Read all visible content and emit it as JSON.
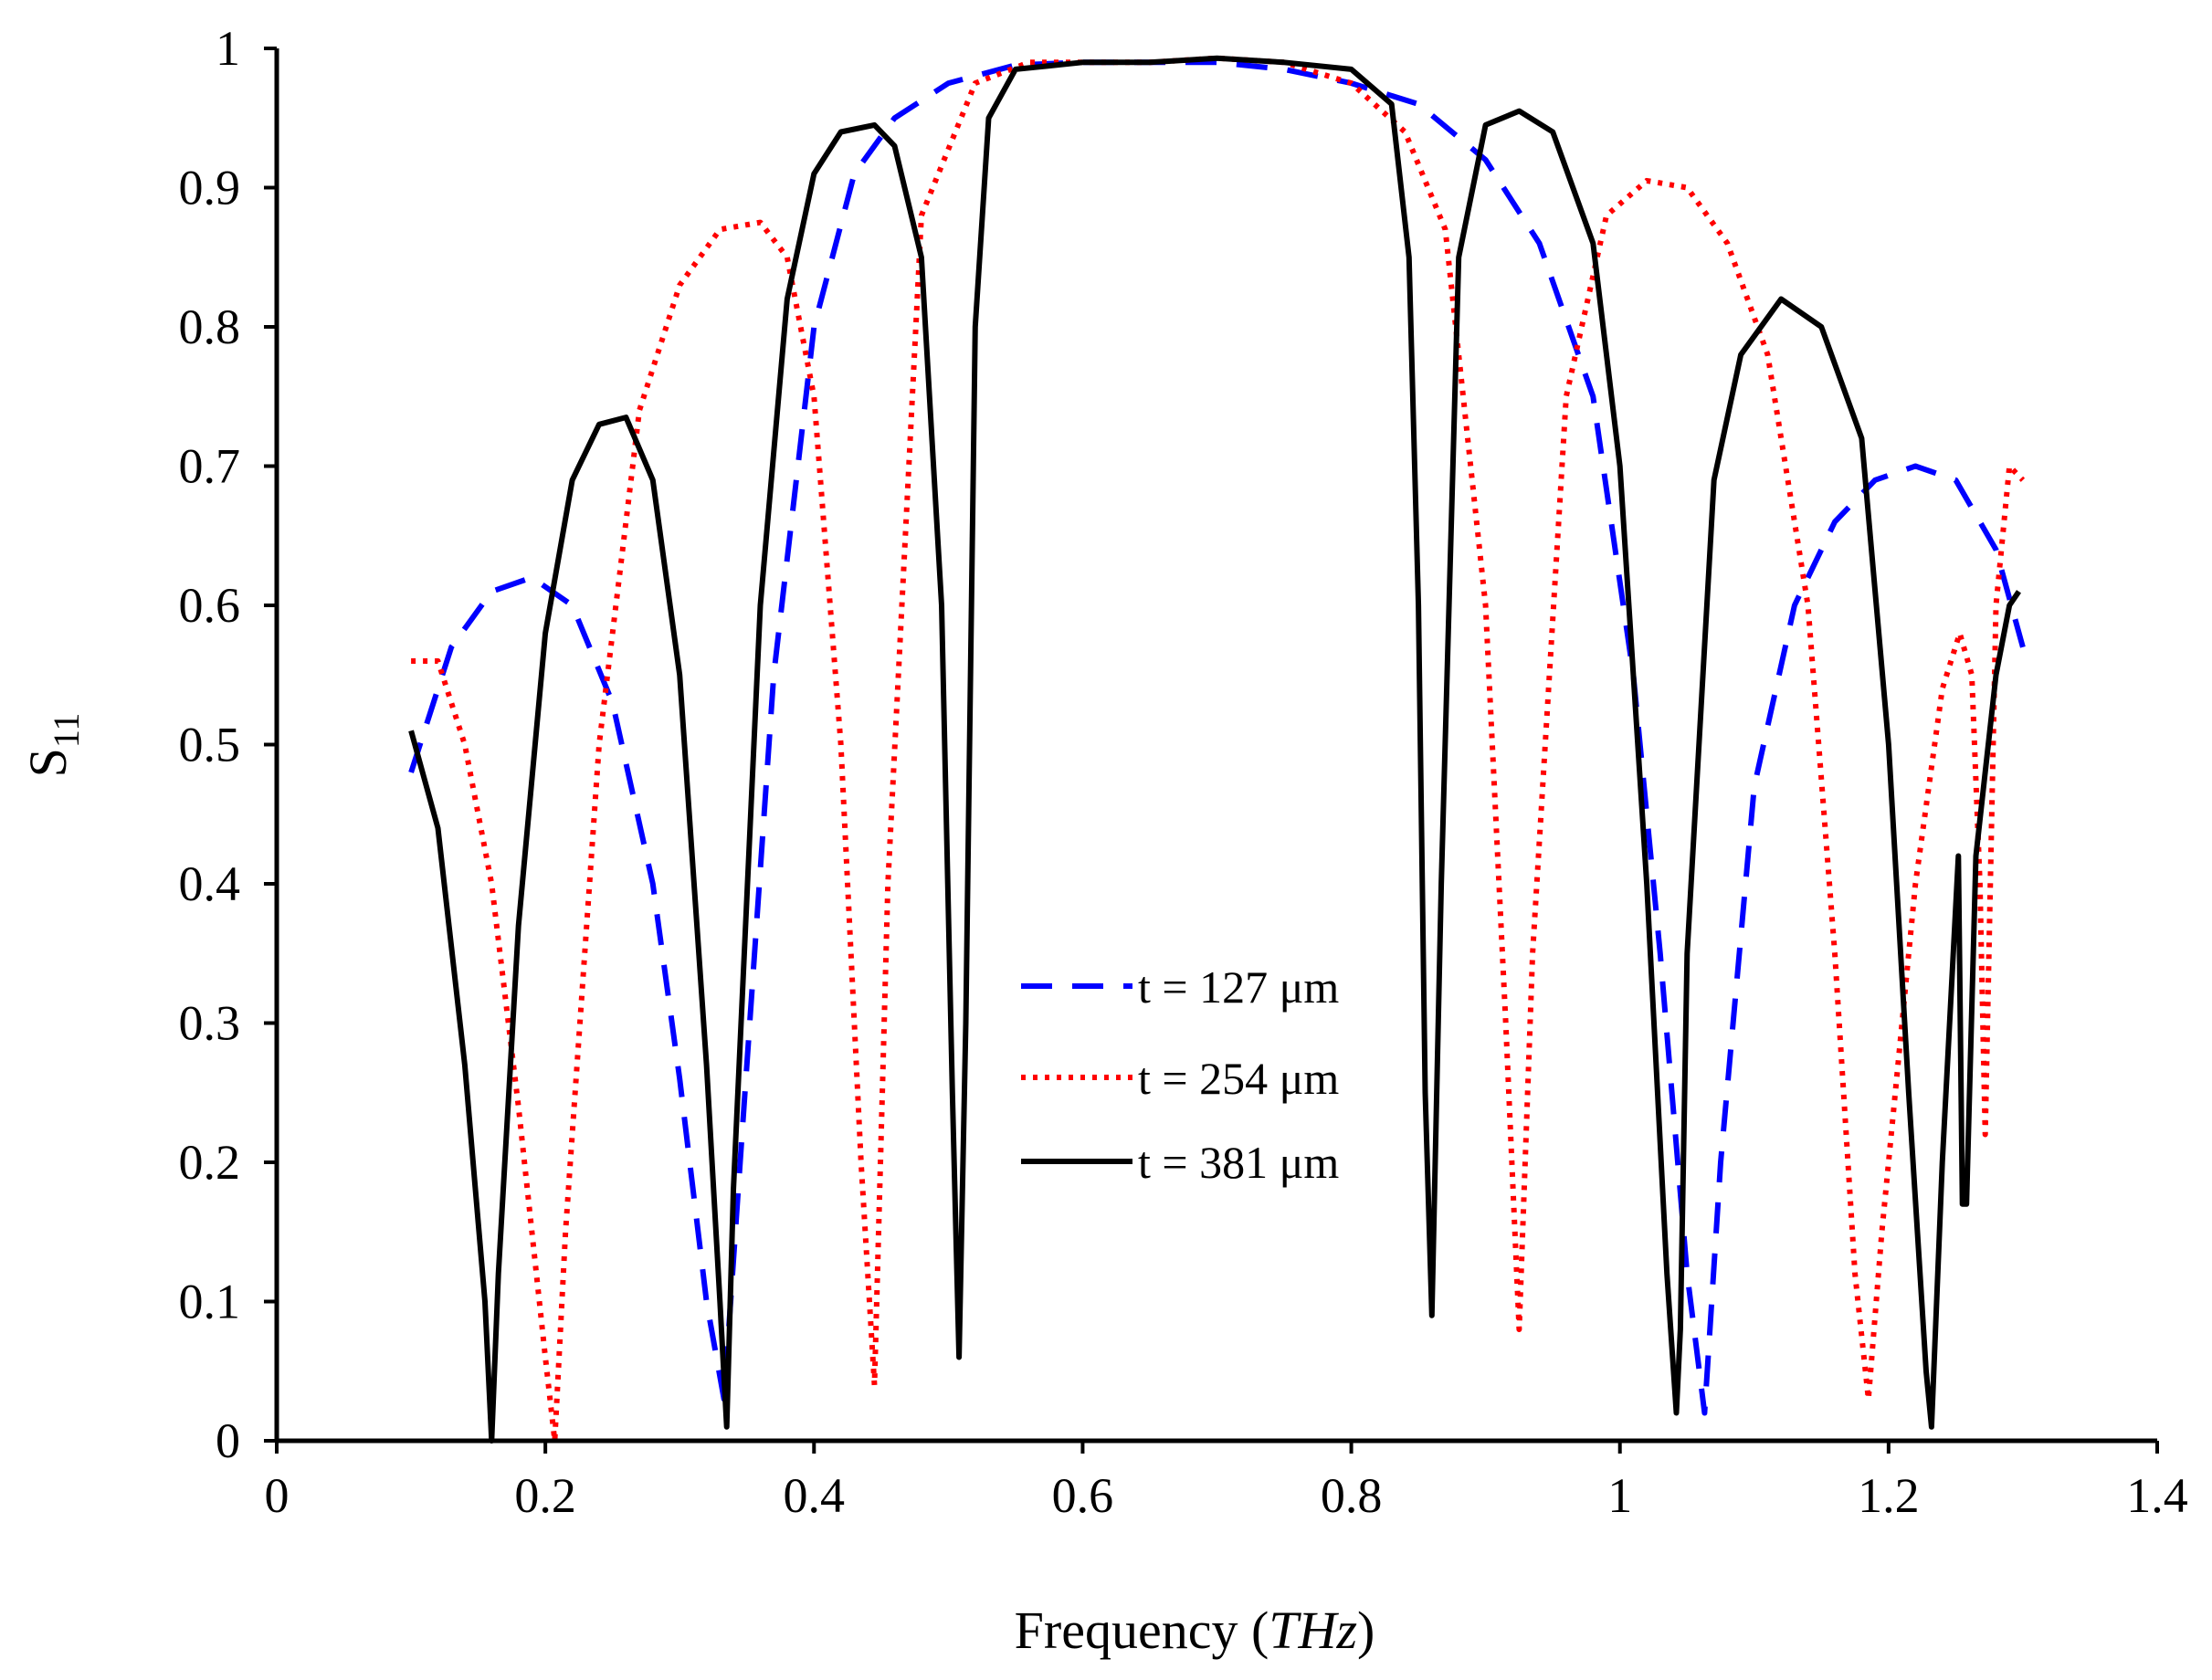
{
  "chart_data": {
    "type": "line",
    "title": "",
    "xlabel": "Frequency",
    "xlabel_unit": "THz",
    "ylabel_main": "S",
    "ylabel_sub": "11",
    "xlim": [
      0,
      1.4
    ],
    "ylim": [
      0,
      1
    ],
    "xticks": [
      "0",
      "0.2",
      "0.4",
      "0.6",
      "0.8",
      "1",
      "1.2",
      "1.4"
    ],
    "yticks": [
      "0",
      "0.1",
      "0.2",
      "0.3",
      "0.4",
      "0.5",
      "0.6",
      "0.7",
      "0.8",
      "0.9",
      "1"
    ],
    "grid": false,
    "legend_position": "center",
    "series": [
      {
        "name": "t = 127 μm",
        "color": "#0000ff",
        "style": "dashed",
        "x": [
          0.1,
          0.13,
          0.16,
          0.19,
          0.22,
          0.25,
          0.28,
          0.3,
          0.32,
          0.333,
          0.345,
          0.37,
          0.4,
          0.43,
          0.46,
          0.5,
          0.55,
          0.6,
          0.65,
          0.7,
          0.75,
          0.8,
          0.85,
          0.9,
          0.94,
          0.98,
          1.01,
          1.03,
          1.05,
          1.063,
          1.075,
          1.1,
          1.13,
          1.16,
          1.19,
          1.22,
          1.25,
          1.28,
          1.3
        ],
        "y": [
          0.48,
          0.57,
          0.61,
          0.62,
          0.6,
          0.53,
          0.4,
          0.26,
          0.1,
          0.03,
          0.2,
          0.55,
          0.8,
          0.91,
          0.95,
          0.975,
          0.988,
          0.99,
          0.99,
          0.99,
          0.985,
          0.975,
          0.96,
          0.92,
          0.86,
          0.75,
          0.55,
          0.35,
          0.12,
          0.02,
          0.2,
          0.47,
          0.6,
          0.66,
          0.69,
          0.7,
          0.69,
          0.64,
          0.57
        ]
      },
      {
        "name": "t = 254 μm",
        "color": "#ff0000",
        "style": "dotted",
        "x": [
          0.1,
          0.12,
          0.14,
          0.16,
          0.18,
          0.2,
          0.207,
          0.215,
          0.24,
          0.27,
          0.3,
          0.33,
          0.36,
          0.38,
          0.4,
          0.42,
          0.435,
          0.445,
          0.455,
          0.48,
          0.52,
          0.56,
          0.6,
          0.65,
          0.7,
          0.75,
          0.8,
          0.84,
          0.87,
          0.9,
          0.915,
          0.925,
          0.935,
          0.96,
          0.99,
          1.02,
          1.05,
          1.08,
          1.11,
          1.14,
          1.16,
          1.175,
          1.185,
          1.195,
          1.22,
          1.24,
          1.253,
          1.262,
          1.268,
          1.272,
          1.28,
          1.29,
          1.3
        ],
        "y": [
          0.56,
          0.56,
          0.5,
          0.4,
          0.24,
          0.06,
          0.0,
          0.15,
          0.5,
          0.74,
          0.83,
          0.87,
          0.875,
          0.85,
          0.75,
          0.5,
          0.2,
          0.04,
          0.4,
          0.88,
          0.975,
          0.99,
          0.99,
          0.99,
          0.993,
          0.99,
          0.975,
          0.94,
          0.87,
          0.6,
          0.3,
          0.08,
          0.35,
          0.75,
          0.88,
          0.905,
          0.9,
          0.86,
          0.78,
          0.6,
          0.35,
          0.12,
          0.03,
          0.15,
          0.4,
          0.54,
          0.58,
          0.55,
          0.4,
          0.22,
          0.6,
          0.7,
          0.69
        ]
      },
      {
        "name": "t = 381 μm",
        "color": "#000000",
        "style": "solid",
        "x": [
          0.1,
          0.12,
          0.14,
          0.155,
          0.16,
          0.165,
          0.18,
          0.2,
          0.22,
          0.24,
          0.26,
          0.28,
          0.3,
          0.32,
          0.33,
          0.335,
          0.34,
          0.36,
          0.38,
          0.4,
          0.42,
          0.445,
          0.46,
          0.48,
          0.495,
          0.503,
          0.508,
          0.513,
          0.52,
          0.53,
          0.55,
          0.6,
          0.65,
          0.7,
          0.75,
          0.8,
          0.83,
          0.843,
          0.85,
          0.855,
          0.86,
          0.867,
          0.88,
          0.9,
          0.925,
          0.95,
          0.98,
          1.0,
          1.02,
          1.035,
          1.042,
          1.045,
          1.05,
          1.07,
          1.09,
          1.12,
          1.15,
          1.18,
          1.2,
          1.215,
          1.228,
          1.232,
          1.24,
          1.252,
          1.255,
          1.258,
          1.265,
          1.28,
          1.29,
          1.297
        ],
        "y": [
          0.51,
          0.44,
          0.27,
          0.1,
          0.0,
          0.12,
          0.37,
          0.58,
          0.69,
          0.73,
          0.735,
          0.69,
          0.55,
          0.27,
          0.1,
          0.01,
          0.18,
          0.6,
          0.82,
          0.91,
          0.94,
          0.945,
          0.93,
          0.85,
          0.6,
          0.25,
          0.06,
          0.3,
          0.8,
          0.95,
          0.985,
          0.99,
          0.99,
          0.993,
          0.99,
          0.985,
          0.96,
          0.85,
          0.6,
          0.25,
          0.09,
          0.4,
          0.85,
          0.945,
          0.955,
          0.94,
          0.86,
          0.7,
          0.4,
          0.12,
          0.02,
          0.08,
          0.35,
          0.69,
          0.78,
          0.82,
          0.8,
          0.72,
          0.5,
          0.25,
          0.05,
          0.01,
          0.2,
          0.42,
          0.17,
          0.17,
          0.42,
          0.55,
          0.6,
          0.61
        ]
      }
    ]
  }
}
